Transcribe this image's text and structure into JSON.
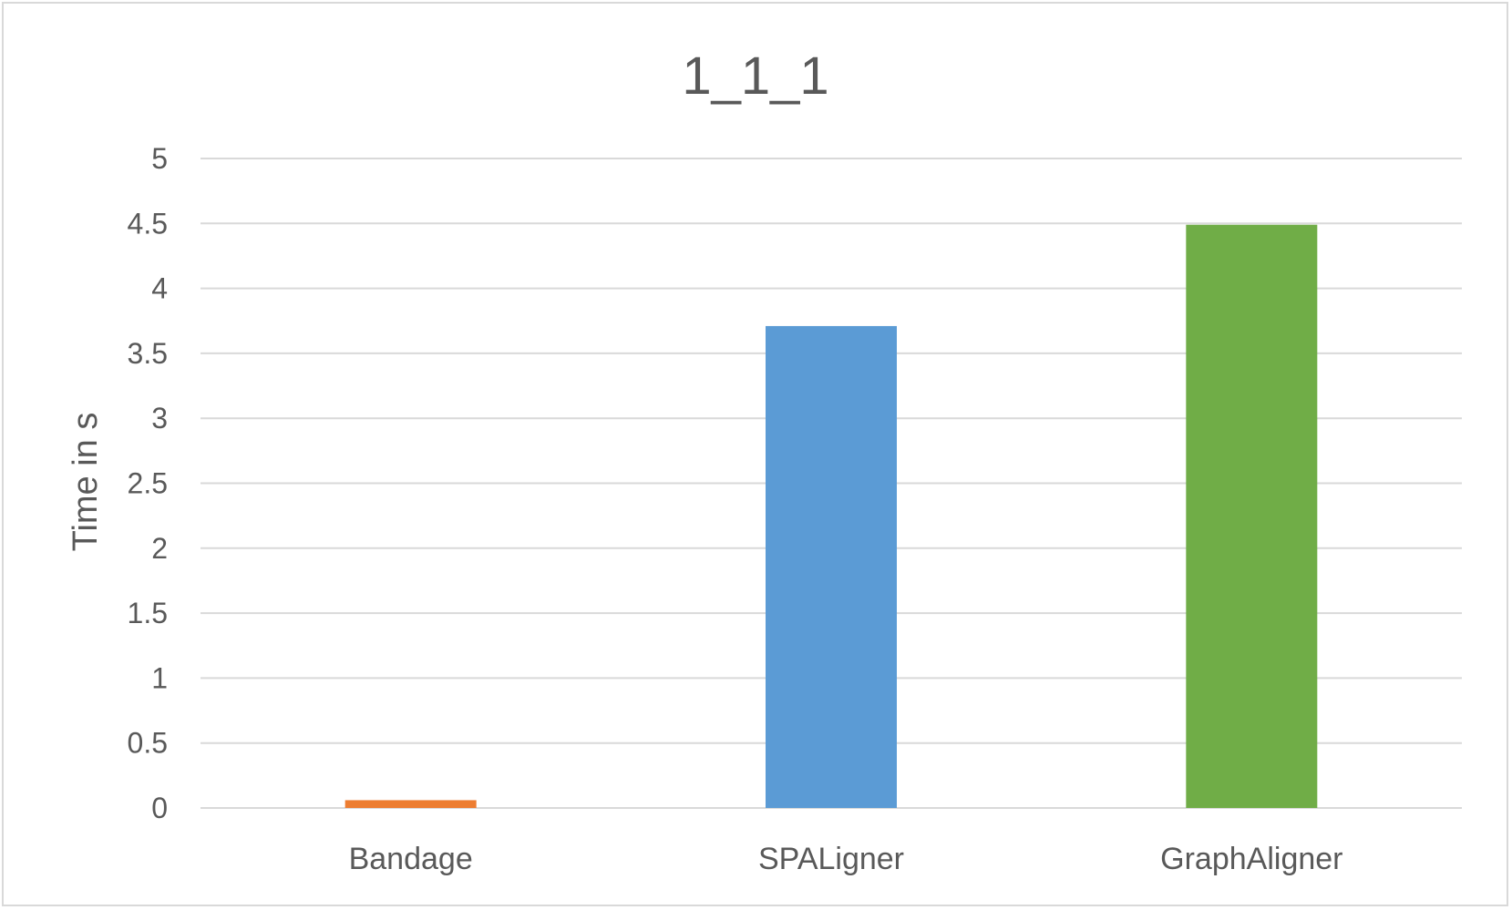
{
  "chart_data": {
    "type": "bar",
    "title": "1_1_1",
    "xlabel": "",
    "ylabel": "Time in s",
    "ylim": [
      0,
      5
    ],
    "yticks": [
      "0",
      "0.5",
      "1",
      "1.5",
      "2",
      "2.5",
      "3",
      "3.5",
      "4",
      "4.5",
      "5"
    ],
    "categories": [
      "Bandage",
      "SPALigner",
      "GraphAligner"
    ],
    "values": [
      0.06,
      3.71,
      4.49
    ],
    "colors": [
      "#ed7d31",
      "#5b9bd5",
      "#70ad47"
    ],
    "grid": true,
    "legend": "none"
  }
}
